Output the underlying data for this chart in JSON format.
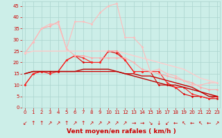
{
  "bg_color": "#cceee8",
  "grid_color": "#aad4ce",
  "xlabel": "Vent moyen/en rafales ( km/h )",
  "xlabel_color": "#cc0000",
  "xlabel_fontsize": 6.5,
  "tick_color": "#cc0000",
  "tick_fontsize": 5.0,
  "ytick_values": [
    0,
    5,
    10,
    15,
    20,
    25,
    30,
    35,
    40,
    45
  ],
  "xtick_values": [
    0,
    1,
    2,
    3,
    4,
    5,
    6,
    7,
    8,
    9,
    10,
    11,
    12,
    13,
    14,
    15,
    16,
    17,
    18,
    19,
    20,
    21,
    22,
    23
  ],
  "xlim": [
    -0.3,
    23.3
  ],
  "ylim": [
    0,
    47
  ],
  "lines": [
    {
      "x": [
        0,
        1,
        2,
        3,
        4,
        5,
        6,
        7,
        8,
        9,
        10,
        11,
        12,
        13,
        14,
        15,
        16,
        17,
        18,
        19,
        20,
        21,
        22,
        23
      ],
      "y": [
        10,
        15,
        16,
        16,
        16,
        21,
        23,
        20,
        20,
        20,
        25,
        24,
        21,
        16,
        16,
        16,
        10,
        10,
        9,
        6,
        5,
        5,
        4,
        4
      ],
      "color": "#dd0000",
      "lw": 0.8,
      "marker": "D",
      "ms": 1.5,
      "alpha": 1.0
    },
    {
      "x": [
        0,
        1,
        2,
        3,
        4,
        5,
        6,
        7,
        8,
        9,
        10,
        11,
        12,
        13,
        14,
        15,
        16,
        17,
        18,
        19,
        20,
        21,
        22,
        23
      ],
      "y": [
        10,
        15,
        16,
        15,
        16,
        21,
        23,
        22,
        20,
        20,
        25,
        25,
        21,
        16,
        16,
        16,
        16,
        11,
        9,
        9,
        6,
        5,
        4,
        5
      ],
      "color": "#ff2222",
      "lw": 0.8,
      "marker": "D",
      "ms": 1.5,
      "alpha": 1.0
    },
    {
      "x": [
        0,
        1,
        2,
        3,
        4,
        5,
        6,
        7,
        8,
        9,
        10,
        11,
        12,
        13,
        14,
        15,
        16,
        17,
        18,
        19,
        20,
        21,
        22,
        23
      ],
      "y": [
        15,
        16,
        16,
        16,
        16,
        16,
        16,
        16,
        16,
        16,
        16,
        16,
        15,
        15,
        14,
        14,
        13,
        12,
        11,
        10,
        9,
        7,
        6,
        5
      ],
      "color": "#cc0000",
      "lw": 1.0,
      "marker": null,
      "ms": 0,
      "alpha": 1.0
    },
    {
      "x": [
        0,
        1,
        2,
        3,
        4,
        5,
        6,
        7,
        8,
        9,
        10,
        11,
        12,
        13,
        14,
        15,
        16,
        17,
        18,
        19,
        20,
        21,
        22,
        23
      ],
      "y": [
        15,
        16,
        16,
        16,
        16,
        16,
        16,
        17,
        17,
        17,
        17,
        16,
        15,
        14,
        13,
        12,
        11,
        10,
        10,
        9,
        8,
        7,
        5,
        5
      ],
      "color": "#bb0000",
      "lw": 1.0,
      "marker": null,
      "ms": 0,
      "alpha": 1.0
    },
    {
      "x": [
        0,
        1,
        2,
        3,
        4,
        5,
        6,
        7,
        8,
        9,
        10,
        11,
        12,
        13,
        14,
        15,
        16,
        17,
        18,
        19,
        20,
        21,
        22,
        23
      ],
      "y": [
        24,
        29,
        35,
        36,
        38,
        26,
        23,
        23,
        22,
        22,
        22,
        22,
        22,
        20,
        17,
        16,
        15,
        14,
        13,
        12,
        11,
        9,
        8,
        8
      ],
      "color": "#ffaaaa",
      "lw": 0.8,
      "marker": "D",
      "ms": 1.5,
      "alpha": 1.0
    },
    {
      "x": [
        0,
        1,
        2,
        3,
        4,
        5,
        6,
        7,
        8,
        9,
        10,
        11,
        12,
        13,
        14,
        15,
        16,
        17,
        18,
        19,
        20,
        21,
        22,
        23
      ],
      "y": [
        24,
        29,
        35,
        37,
        37,
        26,
        38,
        38,
        37,
        42,
        45,
        46,
        31,
        31,
        27,
        16,
        17,
        15,
        14,
        12,
        10,
        10,
        11,
        11
      ],
      "color": "#ffbbbb",
      "lw": 0.8,
      "marker": "D",
      "ms": 1.5,
      "alpha": 1.0
    },
    {
      "x": [
        0,
        1,
        2,
        3,
        4,
        5,
        6,
        7,
        8,
        9,
        10,
        11,
        12,
        13,
        14,
        15,
        16,
        17,
        18,
        19,
        20,
        21,
        22,
        23
      ],
      "y": [
        24,
        25,
        25,
        25,
        25,
        25,
        25,
        25,
        25,
        25,
        25,
        25,
        24,
        23,
        22,
        21,
        20,
        19,
        18,
        17,
        15,
        13,
        12,
        11
      ],
      "color": "#ffcccc",
      "lw": 1.0,
      "marker": null,
      "ms": 0,
      "alpha": 1.0
    }
  ],
  "arrows": [
    "↙",
    "↑",
    "↑",
    "↗",
    "↗",
    "↑",
    "↗",
    "↑",
    "↗",
    "↗",
    "↗",
    "↗",
    "↗",
    "→",
    "→",
    "↘",
    "↓",
    "↙",
    "←",
    "↖",
    "←",
    "↖",
    "←",
    "↗"
  ]
}
